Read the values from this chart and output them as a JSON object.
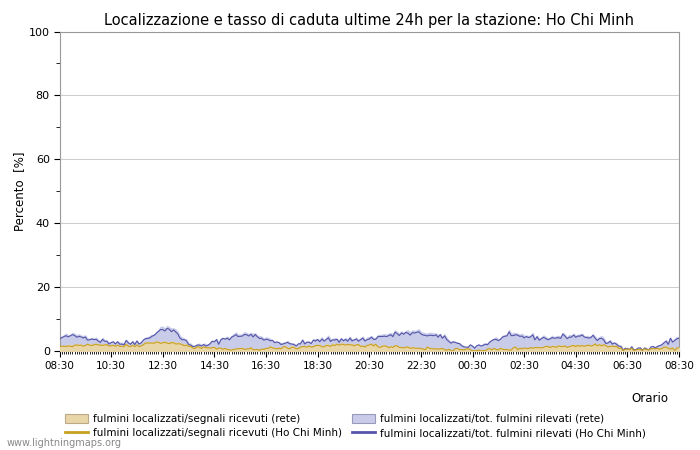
{
  "title": "Localizzazione e tasso di caduta ultime 24h per la stazione: Ho Chi Minh",
  "ylabel": "Percento  [%]",
  "xlabel": "Orario",
  "ylim": [
    0,
    100
  ],
  "yticks": [
    0,
    20,
    40,
    60,
    80,
    100
  ],
  "yticks_minor": [
    10,
    30,
    50,
    70,
    90
  ],
  "x_labels": [
    "08:30",
    "10:30",
    "12:30",
    "14:30",
    "16:30",
    "18:30",
    "20:30",
    "22:30",
    "00:30",
    "02:30",
    "04:30",
    "06:30",
    "08:30"
  ],
  "bg_color": "#ffffff",
  "plot_bg_color": "#ffffff",
  "grid_color": "#cccccc",
  "fill_rete_color": "#e8d5a8",
  "fill_hcm_color": "#c8cce8",
  "line_rete_color": "#c8a020",
  "line_hcm_color": "#5555aa",
  "watermark": "www.lightningmaps.org",
  "legend": [
    "fulmini localizzati/segnali ricevuti (rete)",
    "fulmini localizzati/segnali ricevuti (Ho Chi Minh)",
    "fulmini localizzati/tot. fulmini rilevati (rete)",
    "fulmini localizzati/tot. fulmini rilevati (Ho Chi Minh)"
  ],
  "n_points": 289
}
